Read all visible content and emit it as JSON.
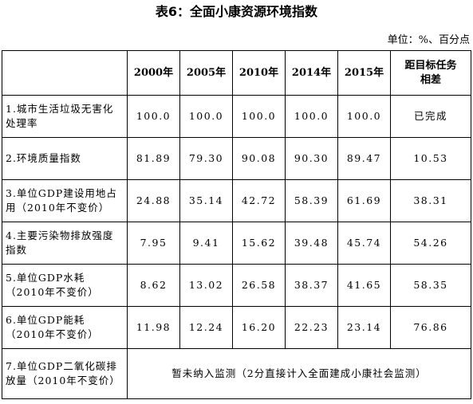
{
  "title": "表6：全面小康资源环境指数",
  "unit": "单位：%、百分点",
  "columns": [
    "",
    "2000年",
    "2005年",
    "2010年",
    "2014年",
    "2015年",
    "距目标任务相差"
  ],
  "rows": [
    {
      "label": "1.城市生活垃圾无害化处理率",
      "values": [
        "100.0",
        "100.0",
        "100.0",
        "100.0",
        "100.0",
        "已完成"
      ]
    },
    {
      "label": "2.环境质量指数",
      "values": [
        "81.89",
        "79.30",
        "90.08",
        "90.30",
        "89.47",
        "10.53"
      ]
    },
    {
      "label": "3.单位GDP建设用地占用（2010年不变价）",
      "values": [
        "24.88",
        "35.14",
        "42.72",
        "58.39",
        "61.69",
        "38.31"
      ]
    },
    {
      "label": "4.主要污染物排放强度指数",
      "values": [
        "7.95",
        "9.41",
        "15.62",
        "39.48",
        "45.74",
        "54.26"
      ]
    },
    {
      "label": "5.单位GDP水耗（2010年不变价）",
      "values": [
        "8.62",
        "13.02",
        "26.58",
        "38.37",
        "41.65",
        "58.35"
      ]
    },
    {
      "label": "6.单位GDP能耗（2010年不变价）",
      "values": [
        "11.98",
        "12.24",
        "16.20",
        "22.23",
        "23.14",
        "76.86"
      ]
    }
  ],
  "last_row": {
    "label": "7.单位GDP二氧化碳排放量（2010年不变价）",
    "note": "暂未纳入监测（2分直接计入全面建成小康社会监测）"
  }
}
